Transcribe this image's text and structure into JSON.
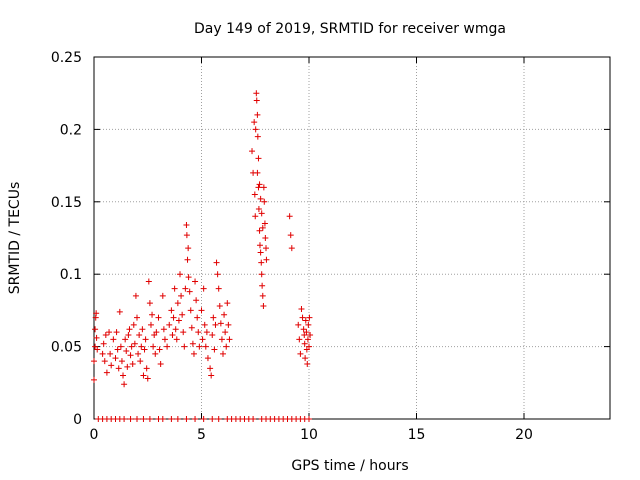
{
  "chart_data": {
    "type": "scatter",
    "title": "Day 149 of 2019, SRMTID for receiver wmga",
    "xlabel": "GPS time / hours",
    "ylabel": "SRMTID / TECUs",
    "xlim": [
      0,
      24
    ],
    "ylim": [
      0,
      0.25
    ],
    "xticks": [
      0,
      5,
      10,
      15,
      20
    ],
    "xtick_labels": [
      "0",
      "5",
      "10",
      "15",
      "20"
    ],
    "yticks": [
      0,
      0.05,
      0.1,
      0.15,
      0.2,
      0.25
    ],
    "ytick_labels": [
      "0",
      "0.05",
      "0.1",
      "0.15",
      "0.2",
      "0.25"
    ],
    "grid": true,
    "marker": "+",
    "color": "#e00000",
    "series": [
      {
        "name": "SRMTID",
        "points": [
          [
            0.0,
            0.027
          ],
          [
            0.0,
            0.04
          ],
          [
            0.05,
            0.05
          ],
          [
            0.05,
            0.062
          ],
          [
            0.08,
            0.07
          ],
          [
            0.1,
            0.073
          ],
          [
            0.12,
            0.056
          ],
          [
            0.15,
            0.048
          ],
          [
            0.4,
            0.045
          ],
          [
            0.45,
            0.052
          ],
          [
            0.5,
            0.04
          ],
          [
            0.55,
            0.058
          ],
          [
            0.6,
            0.032
          ],
          [
            0.7,
            0.06
          ],
          [
            0.75,
            0.045
          ],
          [
            0.8,
            0.037
          ],
          [
            0.9,
            0.055
          ],
          [
            1.0,
            0.042
          ],
          [
            1.05,
            0.06
          ],
          [
            1.1,
            0.048
          ],
          [
            1.15,
            0.035
          ],
          [
            1.2,
            0.074
          ],
          [
            1.25,
            0.05
          ],
          [
            1.3,
            0.04
          ],
          [
            1.35,
            0.03
          ],
          [
            1.4,
            0.024
          ],
          [
            1.45,
            0.055
          ],
          [
            1.5,
            0.047
          ],
          [
            1.55,
            0.036
          ],
          [
            1.6,
            0.058
          ],
          [
            1.65,
            0.062
          ],
          [
            1.7,
            0.044
          ],
          [
            1.75,
            0.05
          ],
          [
            1.8,
            0.038
          ],
          [
            1.85,
            0.065
          ],
          [
            1.9,
            0.052
          ],
          [
            1.95,
            0.085
          ],
          [
            2.0,
            0.07
          ],
          [
            2.05,
            0.045
          ],
          [
            2.1,
            0.058
          ],
          [
            2.15,
            0.04
          ],
          [
            2.2,
            0.05
          ],
          [
            2.25,
            0.062
          ],
          [
            2.3,
            0.03
          ],
          [
            2.35,
            0.048
          ],
          [
            2.4,
            0.055
          ],
          [
            2.45,
            0.035
          ],
          [
            2.5,
            0.028
          ],
          [
            2.55,
            0.095
          ],
          [
            2.6,
            0.08
          ],
          [
            2.65,
            0.065
          ],
          [
            2.7,
            0.072
          ],
          [
            2.75,
            0.05
          ],
          [
            2.8,
            0.058
          ],
          [
            2.85,
            0.045
          ],
          [
            2.9,
            0.06
          ],
          [
            3.0,
            0.07
          ],
          [
            3.05,
            0.048
          ],
          [
            3.1,
            0.038
          ],
          [
            3.2,
            0.085
          ],
          [
            3.25,
            0.062
          ],
          [
            3.3,
            0.055
          ],
          [
            3.4,
            0.05
          ],
          [
            3.5,
            0.065
          ],
          [
            3.6,
            0.075
          ],
          [
            3.65,
            0.058
          ],
          [
            3.7,
            0.07
          ],
          [
            3.75,
            0.09
          ],
          [
            3.8,
            0.062
          ],
          [
            3.85,
            0.055
          ],
          [
            3.9,
            0.08
          ],
          [
            3.95,
            0.068
          ],
          [
            4.0,
            0.1
          ],
          [
            4.05,
            0.085
          ],
          [
            4.1,
            0.072
          ],
          [
            4.15,
            0.06
          ],
          [
            4.2,
            0.05
          ],
          [
            4.25,
            0.09
          ],
          [
            4.3,
            0.134
          ],
          [
            4.32,
            0.127
          ],
          [
            4.35,
            0.11
          ],
          [
            4.38,
            0.118
          ],
          [
            4.4,
            0.098
          ],
          [
            4.45,
            0.088
          ],
          [
            4.5,
            0.075
          ],
          [
            4.55,
            0.063
          ],
          [
            4.6,
            0.052
          ],
          [
            4.65,
            0.045
          ],
          [
            4.7,
            0.095
          ],
          [
            4.75,
            0.082
          ],
          [
            4.8,
            0.07
          ],
          [
            4.85,
            0.06
          ],
          [
            4.9,
            0.05
          ],
          [
            5.0,
            0.075
          ],
          [
            5.05,
            0.055
          ],
          [
            5.1,
            0.09
          ],
          [
            5.15,
            0.065
          ],
          [
            5.2,
            0.05
          ],
          [
            5.25,
            0.06
          ],
          [
            5.3,
            0.042
          ],
          [
            5.4,
            0.035
          ],
          [
            5.45,
            0.03
          ],
          [
            5.5,
            0.058
          ],
          [
            5.55,
            0.07
          ],
          [
            5.6,
            0.048
          ],
          [
            5.65,
            0.065
          ],
          [
            5.7,
            0.108
          ],
          [
            5.75,
            0.1
          ],
          [
            5.8,
            0.09
          ],
          [
            5.85,
            0.078
          ],
          [
            5.9,
            0.066
          ],
          [
            5.95,
            0.055
          ],
          [
            6.0,
            0.045
          ],
          [
            6.05,
            0.072
          ],
          [
            6.1,
            0.06
          ],
          [
            6.15,
            0.05
          ],
          [
            6.2,
            0.08
          ],
          [
            6.25,
            0.065
          ],
          [
            6.3,
            0.055
          ],
          [
            7.35,
            0.185
          ],
          [
            7.4,
            0.17
          ],
          [
            7.45,
            0.205
          ],
          [
            7.48,
            0.155
          ],
          [
            7.5,
            0.14
          ],
          [
            7.52,
            0.2
          ],
          [
            7.55,
            0.225
          ],
          [
            7.57,
            0.22
          ],
          [
            7.6,
            0.21
          ],
          [
            7.62,
            0.195
          ],
          [
            7.65,
            0.16
          ],
          [
            7.67,
            0.145
          ],
          [
            7.7,
            0.13
          ],
          [
            7.72,
            0.12
          ],
          [
            7.75,
            0.115
          ],
          [
            7.78,
            0.108
          ],
          [
            7.8,
            0.1
          ],
          [
            7.82,
            0.092
          ],
          [
            7.85,
            0.085
          ],
          [
            7.88,
            0.078
          ],
          [
            7.9,
            0.16
          ],
          [
            7.92,
            0.15
          ],
          [
            7.95,
            0.135
          ],
          [
            7.97,
            0.125
          ],
          [
            8.0,
            0.118
          ],
          [
            8.02,
            0.11
          ],
          [
            7.6,
            0.17
          ],
          [
            7.65,
            0.18
          ],
          [
            7.7,
            0.162
          ],
          [
            7.75,
            0.152
          ],
          [
            7.8,
            0.142
          ],
          [
            7.85,
            0.132
          ],
          [
            9.1,
            0.14
          ],
          [
            9.15,
            0.127
          ],
          [
            9.2,
            0.118
          ],
          [
            9.5,
            0.065
          ],
          [
            9.55,
            0.055
          ],
          [
            9.6,
            0.045
          ],
          [
            9.65,
            0.076
          ],
          [
            9.7,
            0.07
          ],
          [
            9.75,
            0.062
          ],
          [
            9.78,
            0.058
          ],
          [
            9.8,
            0.052
          ],
          [
            9.82,
            0.042
          ],
          [
            9.85,
            0.068
          ],
          [
            9.88,
            0.06
          ],
          [
            9.9,
            0.048
          ],
          [
            9.92,
            0.038
          ],
          [
            9.95,
            0.055
          ],
          [
            9.97,
            0.065
          ],
          [
            10.0,
            0.05
          ],
          [
            10.02,
            0.07
          ],
          [
            10.05,
            0.058
          ],
          [
            0.2,
            0.0
          ],
          [
            0.4,
            0.0
          ],
          [
            0.6,
            0.0
          ],
          [
            0.8,
            0.0
          ],
          [
            1.0,
            0.0
          ],
          [
            1.2,
            0.0
          ],
          [
            1.4,
            0.0
          ],
          [
            1.7,
            0.0
          ],
          [
            2.0,
            0.0
          ],
          [
            2.3,
            0.0
          ],
          [
            2.6,
            0.0
          ],
          [
            3.0,
            0.0
          ],
          [
            3.2,
            0.0
          ],
          [
            3.6,
            0.0
          ],
          [
            3.9,
            0.0
          ],
          [
            4.3,
            0.0
          ],
          [
            4.7,
            0.0
          ],
          [
            5.1,
            0.0
          ],
          [
            5.5,
            0.0
          ],
          [
            5.8,
            0.0
          ],
          [
            6.2,
            0.0
          ],
          [
            6.4,
            0.0
          ],
          [
            6.6,
            0.0
          ],
          [
            6.8,
            0.0
          ],
          [
            7.0,
            0.0
          ],
          [
            7.2,
            0.0
          ],
          [
            7.4,
            0.0
          ],
          [
            7.8,
            0.0
          ],
          [
            8.0,
            0.0
          ],
          [
            8.2,
            0.0
          ],
          [
            8.4,
            0.0
          ],
          [
            8.6,
            0.0
          ],
          [
            8.8,
            0.0
          ],
          [
            9.0,
            0.0
          ],
          [
            9.2,
            0.0
          ],
          [
            9.4,
            0.0
          ],
          [
            9.6,
            0.0
          ],
          [
            9.8,
            0.0
          ],
          [
            10.0,
            0.0
          ]
        ]
      }
    ]
  }
}
